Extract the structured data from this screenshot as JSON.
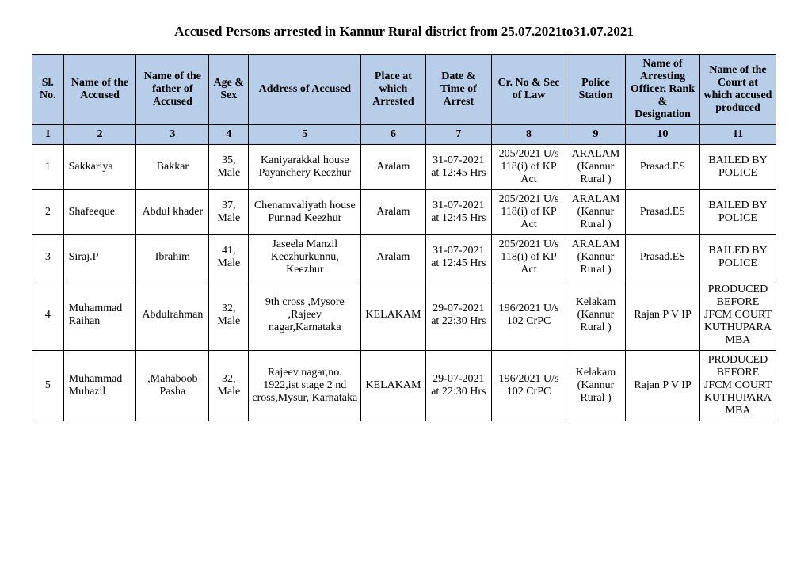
{
  "title": "Accused Persons arrested in   Kannur Rural  district from  25.07.2021to31.07.2021",
  "headers": {
    "c1": "Sl. No.",
    "c2": "Name of the Accused",
    "c3": "Name of the father of Accused",
    "c4": "Age & Sex",
    "c5": "Address of Accused",
    "c6": "Place at which Arrested",
    "c7": "Date & Time of Arrest",
    "c8": "Cr. No & Sec of Law",
    "c9": "Police Station",
    "c10": "Name of Arresting Officer, Rank & Designation",
    "c11": "Name of the Court at which accused produced"
  },
  "numrow": {
    "c1": "1",
    "c2": "2",
    "c3": "3",
    "c4": "4",
    "c5": "5",
    "c6": "6",
    "c7": "7",
    "c8": "8",
    "c9": "9",
    "c10": "10",
    "c11": "11"
  },
  "rows": [
    {
      "sl": "1",
      "name": "Sakkariya",
      "father": "Bakkar",
      "age": "35, Male",
      "addr": "Kaniyarakkal house Payanchery Keezhur",
      "place": "Aralam",
      "date": "31-07-2021 at 12:45 Hrs",
      "sec": "205/2021 U/s 118(i) of KP Act",
      "station": "ARALAM (Kannur Rural )",
      "officer": "Prasad.ES",
      "court": "BAILED BY POLICE"
    },
    {
      "sl": "2",
      "name": "Shafeeque",
      "father": "Abdul khader",
      "age": "37, Male",
      "addr": "Chenamvaliyath house Punnad Keezhur",
      "place": "Aralam",
      "date": "31-07-2021 at 12:45 Hrs",
      "sec": "205/2021 U/s 118(i) of KP Act",
      "station": "ARALAM (Kannur Rural )",
      "officer": "Prasad.ES",
      "court": "BAILED BY POLICE"
    },
    {
      "sl": "3",
      "name": "Siraj.P",
      "father": "Ibrahim",
      "age": "41, Male",
      "addr": "Jaseela Manzil Keezhurkunnu, Keezhur",
      "place": "Aralam",
      "date": "31-07-2021 at 12:45 Hrs",
      "sec": "205/2021 U/s 118(i) of KP Act",
      "station": "ARALAM (Kannur Rural )",
      "officer": "Prasad.ES",
      "court": "BAILED BY POLICE"
    },
    {
      "sl": "4",
      "name": "Muhammad Raihan",
      "father": "Abdulrahman",
      "age": "32, Male",
      "addr": "9th cross ,Mysore ,Rajeev nagar,Karnataka",
      "place": "KELAKAM",
      "date": "29-07-2021 at 22:30 Hrs",
      "sec": "196/2021 U/s 102 CrPC",
      "station": "Kelakam (Kannur Rural )",
      "officer": "Rajan P V IP",
      "court": "PRODUCED BEFORE JFCM COURT KUTHUPARAMBA"
    },
    {
      "sl": "5",
      "name": "Muhammad Muhazil",
      "father": ",Mahaboob Pasha",
      "age": "32, Male",
      "addr": "Rajeev nagar,no. 1922,ist stage 2 nd cross,Mysur, Karnataka",
      "place": "KELAKAM",
      "date": "29-07-2021 at 22:30 Hrs",
      "sec": "196/2021 U/s 102 CrPC",
      "station": "Kelakam (Kannur Rural )",
      "officer": "Rajan P V IP",
      "court": "PRODUCED BEFORE JFCM COURT KUTHUPARAMBA"
    }
  ]
}
